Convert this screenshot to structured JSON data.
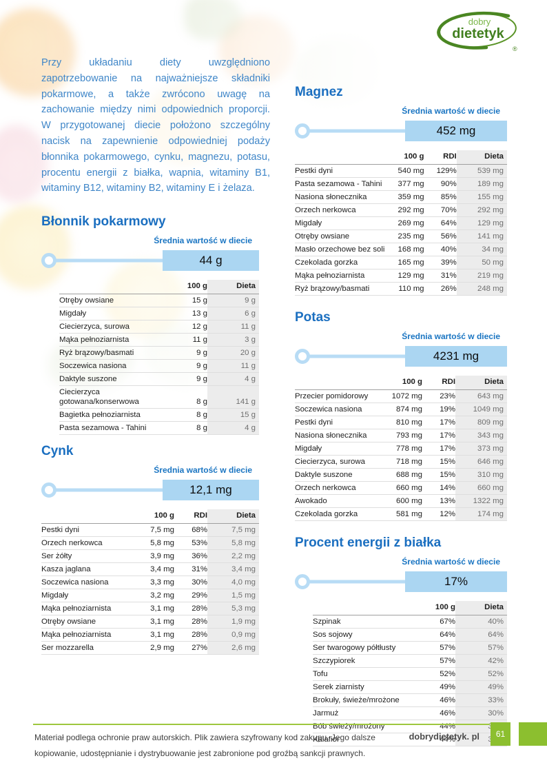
{
  "logo": {
    "line1": "dobry",
    "line2": "dietetyk",
    "registered": "®"
  },
  "intro": {
    "text": "Przy układaniu diety uwzględniono zapotrzebowanie na najważniejsze składniki pokarmowe, a także zwrócono uwagę na zachowanie między nimi odpowiednich proporcji. W przygotowanej diecie położono szczególny nacisk na zapewnienie odpowiedniej podaży błonnika pokarmowego, cynku, magnezu, potasu, procentu energii z białka, wapnia, witaminy B1, witaminy B12, witaminy B2, witaminy E i żelaza."
  },
  "colors": {
    "accent_blue": "#1b6fc0",
    "badge_blue": "#abd6f2",
    "brand_green": "#8cbf2f"
  },
  "sections": [
    {
      "title": "Błonnik pokarmowy",
      "avg_label": "Średnia wartość w diecie",
      "avg_value": "44 g",
      "headers": [
        "100 g",
        "Dieta"
      ],
      "rows": [
        [
          "Otręby owsiane",
          "15 g",
          "9 g"
        ],
        [
          "Migdały",
          "13 g",
          "6 g"
        ],
        [
          "Ciecierzyca, surowa",
          "12 g",
          "11 g"
        ],
        [
          "Mąka pełnoziarnista",
          "11 g",
          "3 g"
        ],
        [
          "Ryż brązowy/basmati",
          "9 g",
          "20 g"
        ],
        [
          "Soczewica nasiona",
          "9 g",
          "11 g"
        ],
        [
          "Daktyle suszone",
          "9 g",
          "4 g"
        ],
        [
          "Ciecierzyca gotowana/konserwowa",
          "8 g",
          "141 g"
        ],
        [
          "Bagietka pełnoziarnista",
          "8 g",
          "15 g"
        ],
        [
          "Pasta sezamowa - Tahini",
          "8 g",
          "4 g"
        ]
      ]
    },
    {
      "title": "Cynk",
      "avg_label": "Średnia wartość w diecie",
      "avg_value": "12,1 mg",
      "headers": [
        "100 g",
        "RDI",
        "Dieta"
      ],
      "rows": [
        [
          "Pestki dyni",
          "7,5 mg",
          "68%",
          "7,5 mg"
        ],
        [
          "Orzech nerkowca",
          "5,8 mg",
          "53%",
          "5,8 mg"
        ],
        [
          "Ser żółty",
          "3,9 mg",
          "36%",
          "2,2 mg"
        ],
        [
          "Kasza jaglana",
          "3,4 mg",
          "31%",
          "3,4 mg"
        ],
        [
          "Soczewica nasiona",
          "3,3 mg",
          "30%",
          "4,0 mg"
        ],
        [
          "Migdały",
          "3,2 mg",
          "29%",
          "1,5 mg"
        ],
        [
          "Mąka pełnoziarnista",
          "3,1 mg",
          "28%",
          "5,3 mg"
        ],
        [
          "Otręby owsiane",
          "3,1 mg",
          "28%",
          "1,9 mg"
        ],
        [
          "Mąka pełnoziarnista",
          "3,1 mg",
          "28%",
          "0,9 mg"
        ],
        [
          "Ser mozzarella",
          "2,9 mg",
          "27%",
          "2,6 mg"
        ]
      ]
    },
    {
      "title": "Magnez",
      "avg_label": "Średnia wartość w diecie",
      "avg_value": "452 mg",
      "headers": [
        "100 g",
        "RDI",
        "Dieta"
      ],
      "rows": [
        [
          "Pestki dyni",
          "540 mg",
          "129%",
          "539 mg"
        ],
        [
          "Pasta sezamowa - Tahini",
          "377 mg",
          "90%",
          "189 mg"
        ],
        [
          "Nasiona słonecznika",
          "359 mg",
          "85%",
          "155 mg"
        ],
        [
          "Orzech nerkowca",
          "292 mg",
          "70%",
          "292 mg"
        ],
        [
          "Migdały",
          "269 mg",
          "64%",
          "129 mg"
        ],
        [
          "Otręby owsiane",
          "235 mg",
          "56%",
          "141 mg"
        ],
        [
          "Masło orzechowe bez soli",
          "168 mg",
          "40%",
          "34 mg"
        ],
        [
          "Czekolada gorzka",
          "165 mg",
          "39%",
          "50 mg"
        ],
        [
          "Mąka pełnoziarnista",
          "129 mg",
          "31%",
          "219 mg"
        ],
        [
          "Ryż brązowy/basmati",
          "110 mg",
          "26%",
          "248 mg"
        ]
      ]
    },
    {
      "title": "Potas",
      "avg_label": "Średnia wartość w diecie",
      "avg_value": "4231 mg",
      "headers": [
        "100 g",
        "RDI",
        "Dieta"
      ],
      "rows": [
        [
          "Przecier pomidorowy",
          "1072 mg",
          "23%",
          "643 mg"
        ],
        [
          "Soczewica nasiona",
          "874 mg",
          "19%",
          "1049 mg"
        ],
        [
          "Pestki dyni",
          "810 mg",
          "17%",
          "809 mg"
        ],
        [
          "Nasiona słonecznika",
          "793 mg",
          "17%",
          "343 mg"
        ],
        [
          "Migdały",
          "778 mg",
          "17%",
          "373 mg"
        ],
        [
          "Ciecierzyca, surowa",
          "718 mg",
          "15%",
          "646 mg"
        ],
        [
          "Daktyle suszone",
          "688 mg",
          "15%",
          "310 mg"
        ],
        [
          "Orzech nerkowca",
          "660 mg",
          "14%",
          "660 mg"
        ],
        [
          "Awokado",
          "600 mg",
          "13%",
          "1322 mg"
        ],
        [
          "Czekolada gorzka",
          "581 mg",
          "12%",
          "174 mg"
        ]
      ]
    },
    {
      "title": "Procent energii z białka",
      "avg_label": "Średnia wartość w diecie",
      "avg_value": "17%",
      "headers": [
        "100 g",
        "Dieta"
      ],
      "rows": [
        [
          "Szpinak",
          "67%",
          "40%"
        ],
        [
          "Sos sojowy",
          "64%",
          "64%"
        ],
        [
          "Ser twarogowy półtłusty",
          "57%",
          "57%"
        ],
        [
          "Szczypiorek",
          "57%",
          "42%"
        ],
        [
          "Tofu",
          "52%",
          "52%"
        ],
        [
          "Serek ziarnisty",
          "49%",
          "49%"
        ],
        [
          "Brokuły, świeże/mrożone",
          "46%",
          "33%"
        ],
        [
          "Jarmuż",
          "46%",
          "30%"
        ],
        [
          "Bób świeży/mrożony",
          "44%",
          "32%"
        ],
        [
          "Kalafior",
          "44%",
          "31%"
        ]
      ]
    }
  ],
  "footer": {
    "notice": "Materiał podlega ochronie praw autorskich. Plik zawiera szyfrowany kod zakupu. Jego dalsze kopiowanie, udostępnianie i dystrybuowanie jest zabronione pod groźbą sankcji prawnych.",
    "site": "dobrydietetyk. pl",
    "page": "61"
  }
}
